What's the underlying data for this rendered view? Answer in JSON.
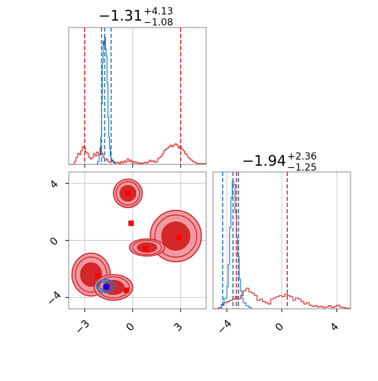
{
  "chart_data": {
    "type": "corner",
    "colors": {
      "red": "#d62728",
      "red_fill": "#ef9aa0",
      "red_dark": "#d0242b",
      "blue": "#1f77b4",
      "blue_inner": "#2f6fc0",
      "marker_red": "#ff0000",
      "marker_blue": "#0000ff",
      "grid": "#c8c8c8",
      "axis": "#808080"
    },
    "param1": {
      "title": {
        "main": "−1.31",
        "sup": "+4.13",
        "sub": "−1.08"
      },
      "xlim": [
        -4.0,
        4.6
      ],
      "ticks": [
        -3,
        0,
        3
      ],
      "tick_labels": [
        "−3",
        "0",
        "3"
      ],
      "red_quantiles": [
        -3.0,
        3.0
      ],
      "blue_quantiles": [
        -1.95,
        -1.75,
        -1.35
      ],
      "red_hist": [
        [
          -4.0,
          0
        ],
        [
          -3.8,
          0
        ],
        [
          -3.65,
          4
        ],
        [
          -3.55,
          10
        ],
        [
          -3.45,
          16
        ],
        [
          -3.35,
          14
        ],
        [
          -3.25,
          20
        ],
        [
          -3.15,
          26
        ],
        [
          -3.05,
          24
        ],
        [
          -2.95,
          18
        ],
        [
          -2.85,
          16
        ],
        [
          -2.75,
          10
        ],
        [
          -2.65,
          8
        ],
        [
          -2.55,
          10
        ],
        [
          -2.45,
          16
        ],
        [
          -2.35,
          12
        ],
        [
          -2.25,
          18
        ],
        [
          -2.15,
          14
        ],
        [
          -2.05,
          24
        ],
        [
          -1.95,
          16
        ],
        [
          -1.85,
          10
        ],
        [
          -1.75,
          6
        ],
        [
          -1.65,
          8
        ],
        [
          -1.55,
          4
        ],
        [
          -1.45,
          3
        ],
        [
          -1.35,
          6
        ],
        [
          -1.25,
          4
        ],
        [
          -1.15,
          3
        ],
        [
          -1.05,
          2
        ],
        [
          -0.95,
          3
        ],
        [
          -0.85,
          1
        ],
        [
          -0.75,
          4
        ],
        [
          -0.65,
          2
        ],
        [
          -0.55,
          5
        ],
        [
          -0.45,
          3
        ],
        [
          -0.35,
          8
        ],
        [
          -0.25,
          4
        ],
        [
          -0.15,
          6
        ],
        [
          -0.05,
          2
        ],
        [
          0.05,
          4
        ],
        [
          0.15,
          2
        ],
        [
          0.25,
          3
        ],
        [
          0.35,
          1
        ],
        [
          0.45,
          2
        ],
        [
          0.55,
          1
        ],
        [
          0.65,
          2
        ],
        [
          0.75,
          3
        ],
        [
          0.85,
          2
        ],
        [
          0.95,
          4
        ],
        [
          1.05,
          6
        ],
        [
          1.15,
          4
        ],
        [
          1.25,
          5
        ],
        [
          1.35,
          3
        ],
        [
          1.45,
          4
        ],
        [
          1.55,
          8
        ],
        [
          1.65,
          10
        ],
        [
          1.75,
          12
        ],
        [
          1.85,
          16
        ],
        [
          1.95,
          20
        ],
        [
          2.05,
          22
        ],
        [
          2.15,
          24
        ],
        [
          2.25,
          26
        ],
        [
          2.35,
          28
        ],
        [
          2.45,
          26
        ],
        [
          2.55,
          28
        ],
        [
          2.65,
          30
        ],
        [
          2.75,
          28
        ],
        [
          2.85,
          24
        ],
        [
          2.95,
          26
        ],
        [
          3.05,
          22
        ],
        [
          3.15,
          20
        ],
        [
          3.25,
          16
        ],
        [
          3.35,
          14
        ],
        [
          3.45,
          10
        ],
        [
          3.55,
          8
        ],
        [
          3.65,
          6
        ],
        [
          3.75,
          4
        ],
        [
          3.85,
          3
        ],
        [
          3.95,
          2
        ],
        [
          4.05,
          1
        ],
        [
          4.6,
          0
        ]
      ],
      "blue_hist": [
        [
          -2.3,
          0
        ],
        [
          -2.2,
          4
        ],
        [
          -2.1,
          14
        ],
        [
          -2.0,
          40
        ],
        [
          -1.95,
          90
        ],
        [
          -1.9,
          150
        ],
        [
          -1.85,
          182
        ],
        [
          -1.8,
          176
        ],
        [
          -1.75,
          188
        ],
        [
          -1.7,
          170
        ],
        [
          -1.65,
          160
        ],
        [
          -1.6,
          120
        ],
        [
          -1.55,
          70
        ],
        [
          -1.5,
          40
        ],
        [
          -1.45,
          24
        ],
        [
          -1.4,
          12
        ],
        [
          -1.35,
          8
        ],
        [
          -1.3,
          4
        ],
        [
          -1.25,
          6
        ],
        [
          -1.2,
          2
        ],
        [
          -1.1,
          0
        ]
      ]
    },
    "param2": {
      "title": {
        "main": "−1.94",
        "sup": "+2.36",
        "sub": "−1.25"
      },
      "xlim": [
        -5.0,
        5.0
      ],
      "ticks": [
        -4,
        0,
        4
      ],
      "tick_labels": [
        "−4",
        "0",
        "4"
      ],
      "red_quantiles": [
        -3.3,
        0.4
      ],
      "blue_quantiles": [
        -4.3,
        -3.55,
        -3.15
      ],
      "red_hist": [
        [
          -5.0,
          0
        ],
        [
          -4.6,
          2
        ],
        [
          -4.4,
          6
        ],
        [
          -4.2,
          10
        ],
        [
          -4.0,
          12
        ],
        [
          -3.8,
          14
        ],
        [
          -3.6,
          16
        ],
        [
          -3.4,
          20
        ],
        [
          -3.2,
          16
        ],
        [
          -3.0,
          22
        ],
        [
          -2.8,
          30
        ],
        [
          -2.6,
          34
        ],
        [
          -2.4,
          28
        ],
        [
          -2.2,
          26
        ],
        [
          -2.0,
          22
        ],
        [
          -1.8,
          14
        ],
        [
          -1.6,
          16
        ],
        [
          -1.4,
          12
        ],
        [
          -1.2,
          10
        ],
        [
          -1.0,
          8
        ],
        [
          -0.8,
          16
        ],
        [
          -0.6,
          18
        ],
        [
          -0.4,
          20
        ],
        [
          -0.2,
          22
        ],
        [
          0.0,
          20
        ],
        [
          0.2,
          24
        ],
        [
          0.4,
          22
        ],
        [
          0.6,
          20
        ],
        [
          0.8,
          14
        ],
        [
          1.0,
          18
        ],
        [
          1.2,
          16
        ],
        [
          1.4,
          12
        ],
        [
          1.6,
          8
        ],
        [
          1.8,
          10
        ],
        [
          2.0,
          6
        ],
        [
          2.2,
          4
        ],
        [
          2.4,
          5
        ],
        [
          2.6,
          3
        ],
        [
          2.8,
          4
        ],
        [
          3.0,
          2
        ],
        [
          3.2,
          3
        ],
        [
          3.4,
          5
        ],
        [
          3.6,
          2
        ],
        [
          3.8,
          4
        ],
        [
          4.0,
          6
        ],
        [
          4.2,
          3
        ],
        [
          4.4,
          2
        ],
        [
          4.6,
          1
        ],
        [
          5.0,
          0
        ]
      ],
      "blue_hist": [
        [
          -4.6,
          0
        ],
        [
          -4.4,
          6
        ],
        [
          -4.2,
          14
        ],
        [
          -4.0,
          30
        ],
        [
          -3.9,
          60
        ],
        [
          -3.8,
          110
        ],
        [
          -3.7,
          150
        ],
        [
          -3.6,
          172
        ],
        [
          -3.5,
          168
        ],
        [
          -3.4,
          130
        ],
        [
          -3.3,
          96
        ],
        [
          -3.2,
          70
        ],
        [
          -3.1,
          40
        ],
        [
          -3.0,
          24
        ],
        [
          -2.9,
          14
        ],
        [
          -2.8,
          8
        ],
        [
          -2.6,
          4
        ],
        [
          -2.4,
          2
        ],
        [
          -2.2,
          0
        ]
      ]
    },
    "joint": {
      "xlim": [
        -4.0,
        4.6
      ],
      "ylim": [
        -4.8,
        4.8
      ],
      "x_ticks": [
        -3,
        0,
        3
      ],
      "y_ticks": [
        4,
        0,
        -4
      ],
      "y_tick_labels": [
        "4",
        "0",
        "−4"
      ],
      "x_tick_labels": [
        "−3",
        "0",
        "3"
      ],
      "red_modes": [
        {
          "label": "upper-left",
          "cx": -0.3,
          "cy": 3.3,
          "rx": 0.9,
          "ry": 1.0
        },
        {
          "label": "right",
          "cx": 2.7,
          "cy": 0.3,
          "rx": 1.6,
          "ry": 1.8
        },
        {
          "label": "bridge",
          "cx": 0.9,
          "cy": -0.5,
          "rx": 1.1,
          "ry": 0.6
        },
        {
          "label": "lower-left",
          "cx": -2.6,
          "cy": -2.4,
          "rx": 1.2,
          "ry": 1.5
        },
        {
          "label": "lower-mid",
          "cx": -1.2,
          "cy": -3.3,
          "rx": 1.2,
          "ry": 0.9
        }
      ],
      "red_markers": [
        [
          -0.3,
          3.3
        ],
        [
          -0.1,
          1.2
        ],
        [
          0.8,
          -0.6
        ],
        [
          2.9,
          0.2
        ],
        [
          -2.2,
          -2.5
        ],
        [
          -0.4,
          -3.5
        ],
        [
          -1.6,
          -3.3
        ]
      ],
      "blue_marker": [
        -1.65,
        -3.25
      ],
      "blue_contour": {
        "cx": -1.7,
        "cy": -3.2,
        "rx": 0.55,
        "ry": 0.45
      }
    }
  }
}
